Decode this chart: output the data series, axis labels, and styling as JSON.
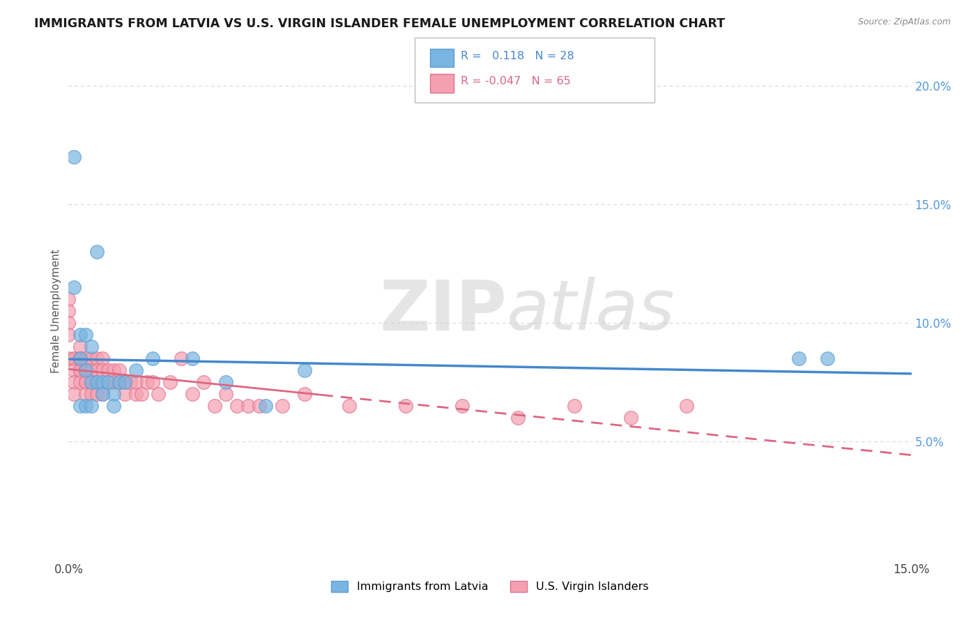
{
  "title": "IMMIGRANTS FROM LATVIA VS U.S. VIRGIN ISLANDER FEMALE UNEMPLOYMENT CORRELATION CHART",
  "source": "Source: ZipAtlas.com",
  "ylabel": "Female Unemployment",
  "xlim": [
    0.0,
    0.15
  ],
  "ylim": [
    0.0,
    0.21
  ],
  "y_ticks": [
    0.05,
    0.1,
    0.15,
    0.2
  ],
  "y_tick_labels_right": [
    "5.0%",
    "10.0%",
    "15.0%",
    "20.0%"
  ],
  "series1_color": "#7ab4e0",
  "series1_edge_color": "#5a9fd4",
  "series2_color": "#f4a0b0",
  "series2_edge_color": "#e07090",
  "series1_label": "Immigrants from Latvia",
  "series2_label": "U.S. Virgin Islanders",
  "series1_R": 0.118,
  "series1_N": 28,
  "series2_R": -0.047,
  "series2_N": 65,
  "watermark_zip": "ZIP",
  "watermark_atlas": "atlas",
  "background_color": "#ffffff",
  "grid_color": "#cccccc",
  "right_axis_color": "#5599dd",
  "series1_x": [
    0.001,
    0.005,
    0.001,
    0.002,
    0.003,
    0.004,
    0.002,
    0.003,
    0.004,
    0.005,
    0.006,
    0.007,
    0.008,
    0.009,
    0.01,
    0.012,
    0.015,
    0.002,
    0.003,
    0.004,
    0.006,
    0.008,
    0.022,
    0.028,
    0.035,
    0.042,
    0.13,
    0.135
  ],
  "series1_y": [
    0.17,
    0.13,
    0.115,
    0.095,
    0.095,
    0.09,
    0.085,
    0.08,
    0.075,
    0.075,
    0.075,
    0.075,
    0.07,
    0.075,
    0.075,
    0.08,
    0.085,
    0.065,
    0.065,
    0.065,
    0.07,
    0.065,
    0.085,
    0.075,
    0.065,
    0.08,
    0.085,
    0.085
  ],
  "series2_x": [
    0.0,
    0.0,
    0.0,
    0.0,
    0.0,
    0.001,
    0.001,
    0.001,
    0.001,
    0.001,
    0.002,
    0.002,
    0.002,
    0.002,
    0.002,
    0.002,
    0.003,
    0.003,
    0.003,
    0.003,
    0.003,
    0.004,
    0.004,
    0.004,
    0.004,
    0.005,
    0.005,
    0.005,
    0.005,
    0.006,
    0.006,
    0.006,
    0.007,
    0.007,
    0.008,
    0.008,
    0.009,
    0.009,
    0.01,
    0.01,
    0.011,
    0.012,
    0.012,
    0.013,
    0.014,
    0.015,
    0.016,
    0.018,
    0.02,
    0.022,
    0.024,
    0.026,
    0.028,
    0.03,
    0.032,
    0.034,
    0.038,
    0.042,
    0.05,
    0.06,
    0.07,
    0.08,
    0.09,
    0.1,
    0.11
  ],
  "series2_y": [
    0.11,
    0.105,
    0.1,
    0.095,
    0.085,
    0.085,
    0.085,
    0.08,
    0.075,
    0.07,
    0.09,
    0.085,
    0.085,
    0.08,
    0.08,
    0.075,
    0.085,
    0.08,
    0.075,
    0.075,
    0.07,
    0.085,
    0.08,
    0.075,
    0.07,
    0.085,
    0.08,
    0.075,
    0.07,
    0.085,
    0.08,
    0.07,
    0.08,
    0.075,
    0.08,
    0.075,
    0.08,
    0.075,
    0.075,
    0.07,
    0.075,
    0.07,
    0.075,
    0.07,
    0.075,
    0.075,
    0.07,
    0.075,
    0.085,
    0.07,
    0.075,
    0.065,
    0.07,
    0.065,
    0.065,
    0.065,
    0.065,
    0.07,
    0.065,
    0.065,
    0.065,
    0.06,
    0.065,
    0.06,
    0.065
  ]
}
